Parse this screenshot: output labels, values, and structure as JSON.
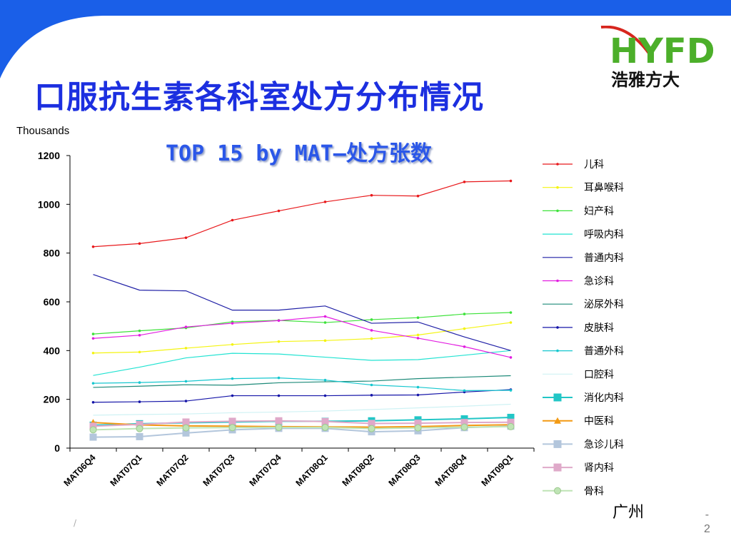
{
  "slide": {
    "title": "口服抗生素各科室处方分布情况",
    "subtitle": "TOP 15 by MAT—处方张数",
    "unit_label": "Thousands",
    "logo_letters": "HYFD",
    "logo_text": "浩雅方大",
    "city": "广州",
    "page_dash": "-",
    "page_number": "2",
    "footer_mark": "/",
    "brand_blue": "#1a5fe8"
  },
  "chart_data": {
    "type": "line",
    "title": "TOP 15 by MAT—处方张数",
    "ylabel": "Thousands",
    "xlabel": "",
    "ylim": [
      0,
      1200
    ],
    "yticks": [
      0,
      200,
      400,
      600,
      800,
      1000,
      1200
    ],
    "grid": false,
    "legend_position": "right",
    "categories": [
      "MAT06Q4",
      "MAT07Q1",
      "MAT07Q2",
      "MAT07Q3",
      "MAT07Q4",
      "MAT08Q1",
      "MAT08Q2",
      "MAT08Q3",
      "MAT08Q4",
      "MAT09Q1"
    ],
    "series": [
      {
        "name": "儿科",
        "color": "#e8191c",
        "marker": "dot",
        "values": [
          826,
          839,
          863,
          935,
          973,
          1010,
          1037,
          1034,
          1092,
          1096
        ]
      },
      {
        "name": "耳鼻喉科",
        "color": "#f4f410",
        "marker": "dot",
        "values": [
          390,
          394,
          410,
          425,
          437,
          441,
          449,
          464,
          490,
          515
        ]
      },
      {
        "name": "妇产科",
        "color": "#3ee23a",
        "marker": "dot",
        "values": [
          468,
          481,
          493,
          518,
          524,
          515,
          527,
          535,
          550,
          556
        ]
      },
      {
        "name": "呼吸内科",
        "color": "#22e3d2",
        "marker": "none",
        "values": [
          298,
          332,
          370,
          389,
          386,
          373,
          360,
          363,
          381,
          400
        ]
      },
      {
        "name": "普通内科",
        "color": "#1f1fa6",
        "marker": "none",
        "values": [
          712,
          648,
          645,
          566,
          566,
          583,
          512,
          517,
          456,
          400
        ]
      },
      {
        "name": "急诊科",
        "color": "#e21ce0",
        "marker": "dot",
        "values": [
          450,
          463,
          497,
          512,
          523,
          540,
          483,
          451,
          416,
          372
        ]
      },
      {
        "name": "泌尿外科",
        "color": "#1d8a79",
        "marker": "none",
        "values": [
          249,
          254,
          260,
          258,
          268,
          272,
          275,
          285,
          291,
          297
        ]
      },
      {
        "name": "皮肤科",
        "color": "#1515a8",
        "marker": "dot",
        "values": [
          188,
          190,
          193,
          215,
          215,
          215,
          217,
          218,
          230,
          240
        ]
      },
      {
        "name": "普通外科",
        "color": "#16c7cf",
        "marker": "dot",
        "values": [
          266,
          269,
          274,
          285,
          288,
          279,
          259,
          250,
          236,
          237
        ]
      },
      {
        "name": "口腔科",
        "color": "#cff2f4",
        "marker": "none",
        "values": [
          135,
          138,
          140,
          145,
          148,
          152,
          158,
          165,
          172,
          180
        ]
      },
      {
        "name": "消化内科",
        "color": "#22c6c6",
        "marker": "square",
        "values": [
          94,
          100,
          104,
          107,
          110,
          110,
          112,
          116,
          120,
          126
        ]
      },
      {
        "name": "中医科",
        "color": "#f39a14",
        "marker": "triangle",
        "values": [
          105,
          95,
          91,
          90,
          88,
          87,
          86,
          88,
          93,
          96
        ]
      },
      {
        "name": "急诊儿科",
        "color": "#b3c6dc",
        "marker": "square",
        "values": [
          45,
          47,
          62,
          75,
          81,
          81,
          67,
          71,
          84,
          90
        ]
      },
      {
        "name": "肾内科",
        "color": "#dfa9c9",
        "marker": "square",
        "values": [
          90,
          97,
          107,
          110,
          112,
          109,
          101,
          102,
          105,
          106
        ]
      },
      {
        "name": "骨科",
        "color": "#bfe4b5",
        "marker": "circle",
        "values": [
          75,
          80,
          83,
          84,
          85,
          85,
          80,
          83,
          86,
          88
        ]
      }
    ]
  }
}
